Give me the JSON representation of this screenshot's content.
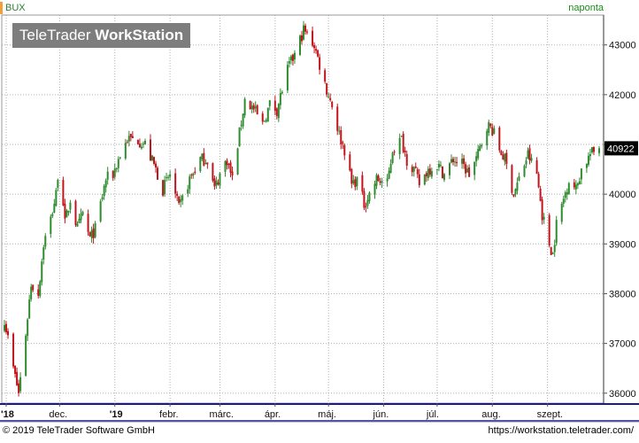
{
  "header": {
    "symbol": "BUX",
    "period": "naponta",
    "watermark_main": "TeleTrader",
    "watermark_bold": "WorkStation"
  },
  "footer": {
    "copyright": "© 2019 TeleTrader Software GmbH",
    "url": "https://workstation.teletrader.com/"
  },
  "colors": {
    "up": "#2e8b2e",
    "down": "#c0141c",
    "grid": "#b0b0b0",
    "frame": "#1a1a8c",
    "last_bg": "#000000",
    "last_fg": "#ffffff"
  },
  "chart_data": {
    "type": "candlestick",
    "title": "BUX",
    "last_value_label": "40922",
    "ylim": [
      35800,
      43600
    ],
    "y_ticks": [
      36000,
      37000,
      38000,
      39000,
      40000,
      41000,
      42000,
      43000
    ],
    "y_tick_labels": [
      "36000",
      "37000",
      "38000",
      "39000",
      "40000",
      "41000",
      "42000",
      "43000"
    ],
    "x_ticks": [
      {
        "label": "'18",
        "value": "2018-11-01",
        "bold": true
      },
      {
        "label": "dec.",
        "value": "2018-12-01",
        "bold": false
      },
      {
        "label": "'19",
        "value": "2019-01-01",
        "bold": true
      },
      {
        "label": "febr.",
        "value": "2019-02-01",
        "bold": false
      },
      {
        "label": "márc.",
        "value": "2019-03-01",
        "bold": false
      },
      {
        "label": "ápr.",
        "value": "2019-04-01",
        "bold": false
      },
      {
        "label": "máj.",
        "value": "2019-05-01",
        "bold": false
      },
      {
        "label": "jún.",
        "value": "2019-06-01",
        "bold": false
      },
      {
        "label": "júl.",
        "value": "2019-07-01",
        "bold": false
      },
      {
        "label": "aug.",
        "value": "2019-08-01",
        "bold": false
      },
      {
        "label": "szept.",
        "value": "2019-09-01",
        "bold": false
      }
    ],
    "xlim": [
      "2018-10-31",
      "2019-09-30"
    ],
    "close_path": [
      [
        "2018-10-31",
        37500
      ],
      [
        "2018-11-05",
        36500
      ],
      [
        "2018-11-08",
        36000
      ],
      [
        "2018-11-12",
        37200
      ],
      [
        "2018-11-15",
        38200
      ],
      [
        "2018-11-19",
        38000
      ],
      [
        "2018-11-22",
        39000
      ],
      [
        "2018-11-26",
        39500
      ],
      [
        "2018-11-29",
        40000
      ],
      [
        "2018-12-01",
        40800
      ],
      [
        "2018-12-04",
        39400
      ],
      [
        "2018-12-07",
        39900
      ],
      [
        "2018-12-11",
        39300
      ],
      [
        "2018-12-14",
        39600
      ],
      [
        "2018-12-18",
        39100
      ],
      [
        "2018-12-21",
        39300
      ],
      [
        "2018-12-27",
        40300
      ],
      [
        "2018-12-31",
        40400
      ],
      [
        "2019-01-03",
        40700
      ],
      [
        "2019-01-08",
        41100
      ],
      [
        "2019-01-14",
        41100
      ],
      [
        "2019-01-18",
        41000
      ],
      [
        "2019-01-24",
        40500
      ],
      [
        "2019-01-28",
        40100
      ],
      [
        "2019-02-01",
        40400
      ],
      [
        "2019-02-06",
        39700
      ],
      [
        "2019-02-12",
        40300
      ],
      [
        "2019-02-18",
        40700
      ],
      [
        "2019-02-22",
        40700
      ],
      [
        "2019-02-26",
        40100
      ],
      [
        "2019-03-01",
        40400
      ],
      [
        "2019-03-05",
        40700
      ],
      [
        "2019-03-08",
        40300
      ],
      [
        "2019-03-11",
        41000
      ],
      [
        "2019-03-15",
        41900
      ],
      [
        "2019-03-20",
        41700
      ],
      [
        "2019-03-25",
        41400
      ],
      [
        "2019-03-29",
        41800
      ],
      [
        "2019-04-02",
        41700
      ],
      [
        "2019-04-08",
        42500
      ],
      [
        "2019-04-12",
        42800
      ],
      [
        "2019-04-17",
        43300
      ],
      [
        "2019-04-23",
        43000
      ],
      [
        "2019-04-26",
        42600
      ],
      [
        "2019-04-30",
        42100
      ],
      [
        "2019-05-03",
        41800
      ],
      [
        "2019-05-07",
        41200
      ],
      [
        "2019-05-10",
        40900
      ],
      [
        "2019-05-14",
        40200
      ],
      [
        "2019-05-17",
        40300
      ],
      [
        "2019-05-21",
        39800
      ],
      [
        "2019-05-24",
        40000
      ],
      [
        "2019-05-28",
        40300
      ],
      [
        "2019-06-03",
        40200
      ],
      [
        "2019-06-06",
        40900
      ],
      [
        "2019-06-11",
        41100
      ],
      [
        "2019-06-14",
        40700
      ],
      [
        "2019-06-18",
        40500
      ],
      [
        "2019-06-21",
        40200
      ],
      [
        "2019-06-26",
        40500
      ],
      [
        "2019-07-01",
        40600
      ],
      [
        "2019-07-05",
        40400
      ],
      [
        "2019-07-10",
        40700
      ],
      [
        "2019-07-15",
        40600
      ],
      [
        "2019-07-19",
        40400
      ],
      [
        "2019-07-24",
        40800
      ],
      [
        "2019-07-29",
        41400
      ],
      [
        "2019-08-01",
        41300
      ],
      [
        "2019-08-05",
        40900
      ],
      [
        "2019-08-08",
        40700
      ],
      [
        "2019-08-13",
        40000
      ],
      [
        "2019-08-16",
        40300
      ],
      [
        "2019-08-21",
        40800
      ],
      [
        "2019-08-26",
        40400
      ],
      [
        "2019-08-29",
        39600
      ],
      [
        "2019-09-02",
        39000
      ],
      [
        "2019-09-04",
        38800
      ],
      [
        "2019-09-06",
        39400
      ],
      [
        "2019-09-10",
        39900
      ],
      [
        "2019-09-13",
        40300
      ],
      [
        "2019-09-17",
        40100
      ],
      [
        "2019-09-20",
        40500
      ],
      [
        "2019-09-25",
        40800
      ],
      [
        "2019-09-30",
        40922
      ]
    ],
    "grid": true,
    "y_axis_position": "right"
  }
}
